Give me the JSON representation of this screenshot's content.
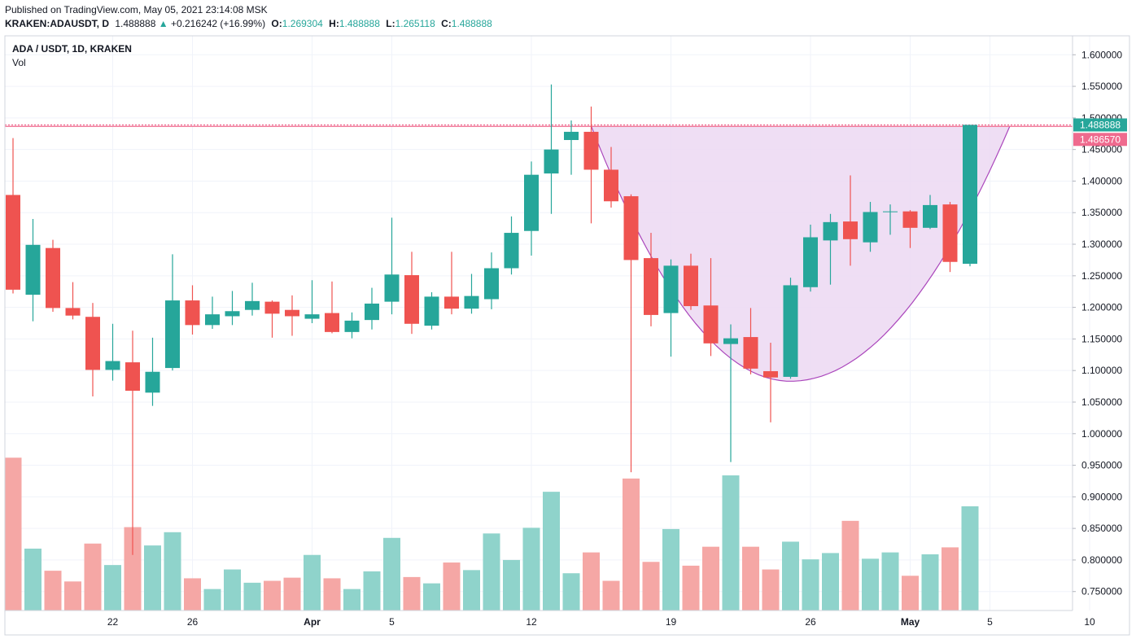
{
  "header": {
    "published": "Published on TradingView.com, May 05, 2021 23:14:08 MSK",
    "symbol": "KRAKEN:ADAUSDT, D",
    "last": "1.488888",
    "change_arrow": "▲",
    "change": "+0.216242 (+16.99%)",
    "o_label": "O:",
    "o_value": "1.269304",
    "h_label": "H:",
    "h_value": "1.488888",
    "l_label": "L:",
    "l_value": "1.265118",
    "c_label": "C:",
    "c_value": "1.488888"
  },
  "chart_data": {
    "type": "candlestick",
    "title": "ADA / USDT, 1D, KRAKEN",
    "volume_label": "Vol",
    "colors": {
      "up": "#26a69a",
      "down": "#ef5350",
      "up_vol": "#8fd3cb",
      "down_vol": "#f5a7a5",
      "pattern_fill": "#ecd8f2",
      "pattern_line": "#ab47bc",
      "level_line": "#ef6a8e"
    },
    "ylim": [
      0.72,
      1.63
    ],
    "y_ticks": [
      "1.600000",
      "1.550000",
      "1.500000",
      "1.450000",
      "1.400000",
      "1.350000",
      "1.300000",
      "1.250000",
      "1.200000",
      "1.150000",
      "1.100000",
      "1.050000",
      "1.000000",
      "0.950000",
      "0.900000",
      "0.850000",
      "0.800000",
      "0.750000"
    ],
    "x_ticks": [
      {
        "label": "22",
        "date": "2021-03-22"
      },
      {
        "label": "26",
        "date": "2021-03-26"
      },
      {
        "label": "Apr",
        "date": "2021-04-01",
        "bold": true
      },
      {
        "label": "5",
        "date": "2021-04-05"
      },
      {
        "label": "12",
        "date": "2021-04-12"
      },
      {
        "label": "19",
        "date": "2021-04-19"
      },
      {
        "label": "26",
        "date": "2021-04-26"
      },
      {
        "label": "May",
        "date": "2021-05-01",
        "bold": true
      },
      {
        "label": "5",
        "date": "2021-05-05"
      },
      {
        "label": "10",
        "date": "2021-05-10"
      }
    ],
    "price_labels": [
      {
        "value": 1.488888,
        "text": "1.488888",
        "color": "#26a69a"
      },
      {
        "value": 1.48657,
        "text": "1.486570",
        "color": "#ef6a8e"
      }
    ],
    "cup_pattern": {
      "start_date": "2021-04-15",
      "end_date": "2021-05-06",
      "low": 1.083,
      "low_date": "2021-04-25",
      "rim_price": 1.487
    },
    "candles": [
      {
        "date": "2021-03-17",
        "o": 1.378,
        "h": 1.468,
        "l": 1.222,
        "c": 1.228,
        "vol": 0.962
      },
      {
        "date": "2021-03-18",
        "o": 1.22,
        "h": 1.34,
        "l": 1.178,
        "c": 1.299,
        "vol": 0.818
      },
      {
        "date": "2021-03-19",
        "o": 1.294,
        "h": 1.307,
        "l": 1.193,
        "c": 1.199,
        "vol": 0.783
      },
      {
        "date": "2021-03-20",
        "o": 1.199,
        "h": 1.24,
        "l": 1.181,
        "c": 1.187,
        "vol": 0.766
      },
      {
        "date": "2021-03-21",
        "o": 1.185,
        "h": 1.207,
        "l": 1.059,
        "c": 1.101,
        "vol": 0.826
      },
      {
        "date": "2021-03-22",
        "o": 1.101,
        "h": 1.174,
        "l": 1.084,
        "c": 1.115,
        "vol": 0.792
      },
      {
        "date": "2021-03-23",
        "o": 1.113,
        "h": 1.163,
        "l": 0.808,
        "c": 1.068,
        "vol": 0.852
      },
      {
        "date": "2021-03-24",
        "o": 1.065,
        "h": 1.152,
        "l": 1.044,
        "c": 1.098,
        "vol": 0.823
      },
      {
        "date": "2021-03-25",
        "o": 1.104,
        "h": 1.284,
        "l": 1.1,
        "c": 1.211,
        "vol": 0.844
      },
      {
        "date": "2021-03-26",
        "o": 1.211,
        "h": 1.235,
        "l": 1.157,
        "c": 1.172,
        "vol": 0.771
      },
      {
        "date": "2021-03-27",
        "o": 1.172,
        "h": 1.217,
        "l": 1.166,
        "c": 1.189,
        "vol": 0.754
      },
      {
        "date": "2021-03-28",
        "o": 1.186,
        "h": 1.226,
        "l": 1.172,
        "c": 1.194,
        "vol": 0.785
      },
      {
        "date": "2021-03-29",
        "o": 1.196,
        "h": 1.239,
        "l": 1.187,
        "c": 1.21,
        "vol": 0.764
      },
      {
        "date": "2021-03-30",
        "o": 1.209,
        "h": 1.211,
        "l": 1.152,
        "c": 1.19,
        "vol": 0.767
      },
      {
        "date": "2021-03-31",
        "o": 1.196,
        "h": 1.219,
        "l": 1.155,
        "c": 1.186,
        "vol": 0.772
      },
      {
        "date": "2021-04-01",
        "o": 1.182,
        "h": 1.243,
        "l": 1.175,
        "c": 1.189,
        "vol": 0.808
      },
      {
        "date": "2021-04-02",
        "o": 1.191,
        "h": 1.241,
        "l": 1.159,
        "c": 1.161,
        "vol": 0.771
      },
      {
        "date": "2021-04-03",
        "o": 1.161,
        "h": 1.192,
        "l": 1.151,
        "c": 1.179,
        "vol": 0.754
      },
      {
        "date": "2021-04-04",
        "o": 1.18,
        "h": 1.231,
        "l": 1.165,
        "c": 1.206,
        "vol": 0.782
      },
      {
        "date": "2021-04-05",
        "o": 1.209,
        "h": 1.342,
        "l": 1.189,
        "c": 1.252,
        "vol": 0.835
      },
      {
        "date": "2021-04-06",
        "o": 1.251,
        "h": 1.288,
        "l": 1.158,
        "c": 1.174,
        "vol": 0.773
      },
      {
        "date": "2021-04-07",
        "o": 1.171,
        "h": 1.224,
        "l": 1.165,
        "c": 1.217,
        "vol": 0.763
      },
      {
        "date": "2021-04-08",
        "o": 1.217,
        "h": 1.288,
        "l": 1.189,
        "c": 1.198,
        "vol": 0.796
      },
      {
        "date": "2021-04-09",
        "o": 1.198,
        "h": 1.253,
        "l": 1.19,
        "c": 1.218,
        "vol": 0.784
      },
      {
        "date": "2021-04-10",
        "o": 1.213,
        "h": 1.287,
        "l": 1.197,
        "c": 1.262,
        "vol": 0.842
      },
      {
        "date": "2021-04-11",
        "o": 1.262,
        "h": 1.344,
        "l": 1.252,
        "c": 1.318,
        "vol": 0.8
      },
      {
        "date": "2021-04-12",
        "o": 1.321,
        "h": 1.431,
        "l": 1.282,
        "c": 1.41,
        "vol": 0.851
      },
      {
        "date": "2021-04-13",
        "o": 1.412,
        "h": 1.553,
        "l": 1.348,
        "c": 1.45,
        "vol": 0.908
      },
      {
        "date": "2021-04-14",
        "o": 1.465,
        "h": 1.496,
        "l": 1.41,
        "c": 1.478,
        "vol": 0.779
      },
      {
        "date": "2021-04-15",
        "o": 1.478,
        "h": 1.518,
        "l": 1.333,
        "c": 1.418,
        "vol": 0.812
      },
      {
        "date": "2021-04-16",
        "o": 1.418,
        "h": 1.454,
        "l": 1.358,
        "c": 1.368,
        "vol": 0.767
      },
      {
        "date": "2021-04-17",
        "o": 1.376,
        "h": 1.379,
        "l": 0.939,
        "c": 1.275,
        "vol": 0.929
      },
      {
        "date": "2021-04-18",
        "o": 1.278,
        "h": 1.318,
        "l": 1.17,
        "c": 1.188,
        "vol": 0.797
      },
      {
        "date": "2021-04-19",
        "o": 1.191,
        "h": 1.276,
        "l": 1.122,
        "c": 1.266,
        "vol": 0.849
      },
      {
        "date": "2021-04-20",
        "o": 1.266,
        "h": 1.285,
        "l": 1.196,
        "c": 1.202,
        "vol": 0.791
      },
      {
        "date": "2021-04-21",
        "o": 1.203,
        "h": 1.278,
        "l": 1.123,
        "c": 1.143,
        "vol": 0.821
      },
      {
        "date": "2021-04-22",
        "o": 1.142,
        "h": 1.173,
        "l": 0.955,
        "c": 1.151,
        "vol": 0.934
      },
      {
        "date": "2021-04-23",
        "o": 1.153,
        "h": 1.199,
        "l": 1.094,
        "c": 1.103,
        "vol": 0.821
      },
      {
        "date": "2021-04-24",
        "o": 1.099,
        "h": 1.144,
        "l": 1.018,
        "c": 1.089,
        "vol": 0.785
      },
      {
        "date": "2021-04-25",
        "o": 1.09,
        "h": 1.247,
        "l": 1.087,
        "c": 1.235,
        "vol": 0.829
      },
      {
        "date": "2021-04-26",
        "o": 1.232,
        "h": 1.331,
        "l": 1.225,
        "c": 1.311,
        "vol": 0.801
      },
      {
        "date": "2021-04-27",
        "o": 1.306,
        "h": 1.348,
        "l": 1.236,
        "c": 1.335,
        "vol": 0.811
      },
      {
        "date": "2021-04-28",
        "o": 1.336,
        "h": 1.409,
        "l": 1.266,
        "c": 1.308,
        "vol": 0.862
      },
      {
        "date": "2021-04-29",
        "o": 1.303,
        "h": 1.367,
        "l": 1.288,
        "c": 1.351,
        "vol": 0.802
      },
      {
        "date": "2021-04-30",
        "o": 1.351,
        "h": 1.363,
        "l": 1.315,
        "c": 1.352,
        "vol": 0.812
      },
      {
        "date": "2021-05-01",
        "o": 1.352,
        "h": 1.354,
        "l": 1.294,
        "c": 1.326,
        "vol": 0.775
      },
      {
        "date": "2021-05-02",
        "o": 1.326,
        "h": 1.378,
        "l": 1.324,
        "c": 1.362,
        "vol": 0.809
      },
      {
        "date": "2021-05-03",
        "o": 1.363,
        "h": 1.367,
        "l": 1.256,
        "c": 1.272,
        "vol": 0.82
      },
      {
        "date": "2021-05-04",
        "o": 1.269,
        "h": 1.489,
        "l": 1.265,
        "c": 1.489,
        "vol": 0.885
      }
    ]
  }
}
